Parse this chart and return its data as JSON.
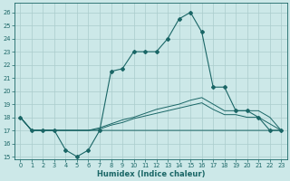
{
  "xlabel": "Humidex (Indice chaleur)",
  "background_color": "#cce8e8",
  "line_color": "#1a6666",
  "grid_color": "#aacccc",
  "xlim": [
    -0.5,
    23.5
  ],
  "ylim": [
    14.8,
    26.7
  ],
  "yticks": [
    15,
    16,
    17,
    18,
    19,
    20,
    21,
    22,
    23,
    24,
    25,
    26
  ],
  "xticks": [
    0,
    1,
    2,
    3,
    4,
    5,
    6,
    7,
    8,
    9,
    10,
    11,
    12,
    13,
    14,
    15,
    16,
    17,
    18,
    19,
    20,
    21,
    22,
    23
  ],
  "series1_x": [
    0,
    1,
    2,
    3,
    4,
    5,
    6,
    7,
    8,
    9,
    10,
    11,
    12,
    13,
    14,
    15,
    16,
    17,
    18,
    19,
    20,
    21,
    22,
    23
  ],
  "series1_y": [
    18,
    17,
    17,
    17,
    15.5,
    15,
    15.5,
    17,
    21.5,
    21.7,
    23,
    23,
    23,
    24,
    25.5,
    26,
    24.5,
    20.3,
    20.3,
    18.5,
    18.5,
    18,
    17,
    17
  ],
  "series2_x": [
    0,
    1,
    2,
    3,
    4,
    5,
    6,
    7,
    8,
    9,
    10,
    11,
    12,
    13,
    14,
    15,
    16,
    17,
    18,
    19,
    20,
    21,
    22,
    23
  ],
  "series2_y": [
    18,
    17,
    17,
    17,
    17,
    17,
    17,
    17,
    17,
    17,
    17,
    17,
    17,
    17,
    17,
    17,
    17,
    17,
    17,
    17,
    17,
    17,
    17,
    17
  ],
  "series3_x": [
    0,
    1,
    2,
    3,
    4,
    5,
    6,
    7,
    8,
    9,
    10,
    11,
    12,
    13,
    14,
    15,
    16,
    17,
    18,
    19,
    20,
    21,
    22,
    23
  ],
  "series3_y": [
    18,
    17,
    17,
    17,
    17,
    17,
    17,
    17.2,
    17.5,
    17.8,
    18.0,
    18.3,
    18.6,
    18.8,
    19.0,
    19.3,
    19.5,
    19.0,
    18.5,
    18.5,
    18.5,
    18.5,
    18,
    17
  ],
  "series4_x": [
    0,
    1,
    2,
    3,
    4,
    5,
    6,
    7,
    8,
    9,
    10,
    11,
    12,
    13,
    14,
    15,
    16,
    17,
    18,
    19,
    20,
    21,
    22,
    23
  ],
  "series4_y": [
    18,
    17,
    17,
    17,
    17,
    17,
    17,
    17.1,
    17.4,
    17.6,
    17.9,
    18.1,
    18.3,
    18.5,
    18.7,
    18.9,
    19.1,
    18.6,
    18.2,
    18.2,
    18.0,
    18.0,
    17.5,
    17
  ]
}
